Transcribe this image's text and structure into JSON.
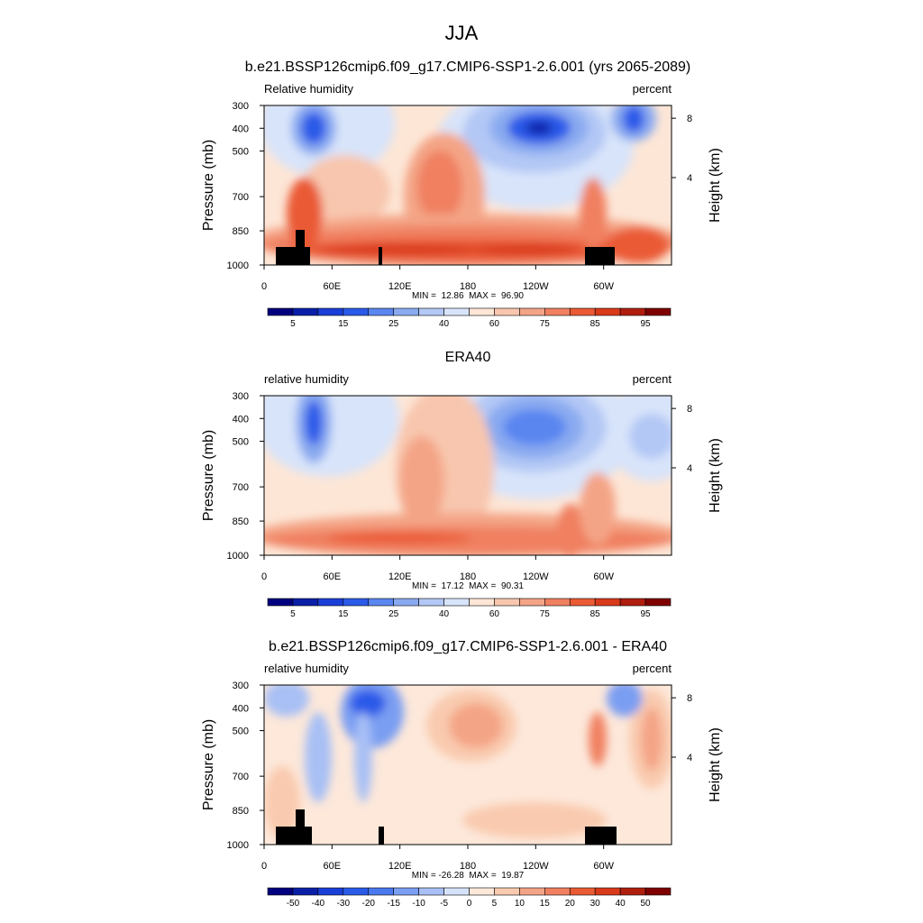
{
  "title": "JJA",
  "chart_data": [
    {
      "type": "contour",
      "title": "b.e21.BSSP126cmip6.f09_g17.CMIP6-SSP1-2.6.001 (yrs 2065-2089)",
      "left_label": "Relative humidity",
      "right_label": "percent",
      "ylabel": "Pressure (mb)",
      "y2label": "Height (km)",
      "ylim": [
        1000,
        300
      ],
      "yticks": [
        300,
        400,
        500,
        700,
        850,
        1000
      ],
      "y2ticks": [
        4,
        8
      ],
      "xlim": [
        0,
        360
      ],
      "xticks": [
        0,
        {
          "value": 60,
          "label": "60E"
        },
        {
          "value": 120,
          "label": "120E"
        },
        180,
        {
          "value": 240,
          "label": "120W"
        },
        {
          "value": 300,
          "label": "60W"
        }
      ],
      "stats": "MIN =  12.86  MAX =  96.90",
      "colorbar": {
        "colors": [
          "#00007f",
          "#0a1fa8",
          "#1a3fd8",
          "#2a5ae8",
          "#5a86f0",
          "#8aaaf0",
          "#b3c8f5",
          "#d8e4fa",
          "#fde6d6",
          "#f8c6ae",
          "#f4a486",
          "#f08060",
          "#ea5a34",
          "#d93a1a",
          "#b01e0e",
          "#7f0000"
        ],
        "labels": [
          5,
          15,
          25,
          40,
          60,
          75,
          85,
          95
        ],
        "label_every": 2
      }
    },
    {
      "type": "contour",
      "title": "ERA40",
      "left_label": "relative humidity",
      "right_label": "percent",
      "ylabel": "Pressure (mb)",
      "y2label": "Height (km)",
      "ylim": [
        1000,
        300
      ],
      "yticks": [
        300,
        400,
        500,
        700,
        850,
        1000
      ],
      "y2ticks": [
        4,
        8
      ],
      "xlim": [
        0,
        360
      ],
      "xticks": [
        0,
        {
          "value": 60,
          "label": "60E"
        },
        {
          "value": 120,
          "label": "120E"
        },
        180,
        {
          "value": 240,
          "label": "120W"
        },
        {
          "value": 300,
          "label": "60W"
        }
      ],
      "stats": "MIN =  17.12  MAX =  90.31",
      "colorbar": {
        "colors": [
          "#00007f",
          "#0a1fa8",
          "#1a3fd8",
          "#2a5ae8",
          "#5a86f0",
          "#8aaaf0",
          "#b3c8f5",
          "#d8e4fa",
          "#fde6d6",
          "#f8c6ae",
          "#f4a486",
          "#f08060",
          "#ea5a34",
          "#d93a1a",
          "#b01e0e",
          "#7f0000"
        ],
        "labels": [
          5,
          15,
          25,
          40,
          60,
          75,
          85,
          95
        ],
        "label_every": 2
      }
    },
    {
      "type": "contour",
      "title": "b.e21.BSSP126cmip6.f09_g17.CMIP6-SSP1-2.6.001 - ERA40",
      "left_label": "relative humidity",
      "right_label": "percent",
      "ylabel": "Pressure (mb)",
      "y2label": "Height (km)",
      "ylim": [
        1000,
        300
      ],
      "yticks": [
        300,
        400,
        500,
        700,
        850,
        1000
      ],
      "y2ticks": [
        4,
        8
      ],
      "xlim": [
        0,
        360
      ],
      "xticks": [
        0,
        {
          "value": 60,
          "label": "60E"
        },
        {
          "value": 120,
          "label": "120E"
        },
        180,
        {
          "value": 240,
          "label": "120W"
        },
        {
          "value": 300,
          "label": "60W"
        }
      ],
      "stats": "MIN = -26.28  MAX =  19.87",
      "colorbar": {
        "colors": [
          "#00007f",
          "#0a1fa8",
          "#1a3fd8",
          "#2a5ae8",
          "#4a78ee",
          "#7a9ef2",
          "#a8c0f5",
          "#d5e2fa",
          "#fde8da",
          "#f9caaf",
          "#f4a486",
          "#f08060",
          "#ea5a34",
          "#d93a1a",
          "#b01e0e",
          "#7f0000"
        ],
        "labels": [
          -50,
          -40,
          -30,
          -20,
          -15,
          -10,
          -5,
          0,
          5,
          10,
          15,
          20,
          30,
          40,
          50
        ],
        "label_every": 1
      }
    }
  ]
}
